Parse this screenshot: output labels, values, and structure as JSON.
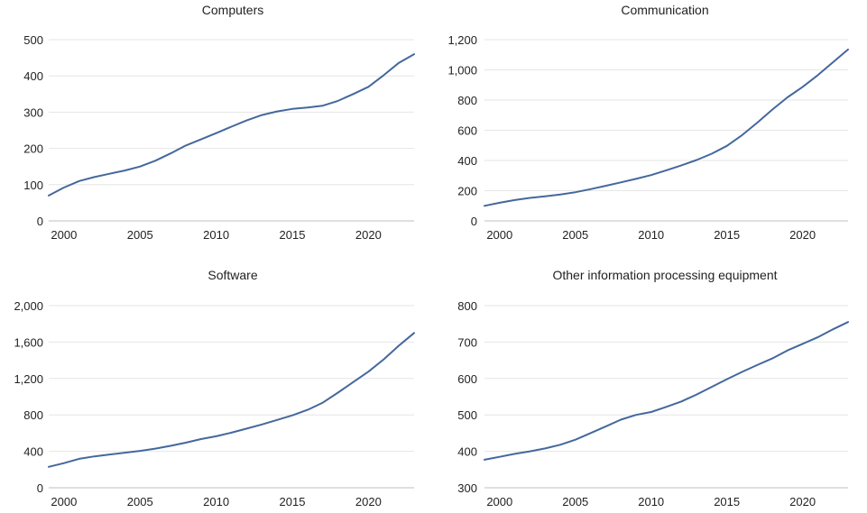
{
  "colors": {
    "line": "#44689c",
    "grid": "#e6e6e6",
    "text": "#222222"
  },
  "x_ticks": [
    2000,
    2005,
    2010,
    2015,
    2020
  ],
  "chart_data": [
    {
      "type": "line",
      "title": "Computers",
      "xlabel": "",
      "ylabel": "",
      "xlim": [
        1999,
        2023
      ],
      "ylim": [
        0,
        500
      ],
      "y_ticks": [
        0,
        100,
        200,
        300,
        400,
        500
      ],
      "y_tick_labels": [
        "0",
        "100",
        "200",
        "300",
        "400",
        "500"
      ],
      "x": [
        1999,
        2000,
        2001,
        2002,
        2003,
        2004,
        2005,
        2006,
        2007,
        2008,
        2009,
        2010,
        2011,
        2012,
        2013,
        2014,
        2015,
        2016,
        2017,
        2018,
        2019,
        2020,
        2021,
        2022,
        2023
      ],
      "values": [
        70,
        92,
        110,
        121,
        130,
        139,
        150,
        166,
        186,
        208,
        225,
        242,
        260,
        277,
        292,
        302,
        309,
        313,
        318,
        331,
        350,
        370,
        402,
        436,
        460
      ]
    },
    {
      "type": "line",
      "title": "Communication",
      "xlabel": "",
      "ylabel": "",
      "xlim": [
        1999,
        2023
      ],
      "ylim": [
        0,
        1200
      ],
      "y_ticks": [
        0,
        200,
        400,
        600,
        800,
        1000,
        1200
      ],
      "y_tick_labels": [
        "0",
        "200",
        "400",
        "600",
        "800",
        "1,000",
        "1,200"
      ],
      "x": [
        1999,
        2000,
        2001,
        2002,
        2003,
        2004,
        2005,
        2006,
        2007,
        2008,
        2009,
        2010,
        2011,
        2012,
        2013,
        2014,
        2015,
        2016,
        2017,
        2018,
        2019,
        2020,
        2021,
        2022,
        2023
      ],
      "values": [
        100,
        120,
        138,
        152,
        163,
        175,
        190,
        210,
        232,
        255,
        278,
        303,
        335,
        368,
        403,
        445,
        497,
        568,
        650,
        737,
        818,
        887,
        965,
        1050,
        1135
      ]
    },
    {
      "type": "line",
      "title": "Software",
      "xlabel": "",
      "ylabel": "",
      "xlim": [
        1999,
        2023
      ],
      "ylim": [
        0,
        2000
      ],
      "y_ticks": [
        0,
        400,
        800,
        1200,
        1600,
        2000
      ],
      "y_tick_labels": [
        "0",
        "400",
        "800",
        "1,200",
        "1,600",
        "2,000"
      ],
      "x": [
        1999,
        2000,
        2001,
        2002,
        2003,
        2004,
        2005,
        2006,
        2007,
        2008,
        2009,
        2010,
        2011,
        2012,
        2013,
        2014,
        2015,
        2016,
        2017,
        2018,
        2019,
        2020,
        2021,
        2022,
        2023
      ],
      "values": [
        230,
        270,
        318,
        345,
        365,
        385,
        405,
        430,
        460,
        495,
        535,
        565,
        605,
        650,
        695,
        745,
        795,
        855,
        935,
        1045,
        1160,
        1275,
        1410,
        1560,
        1700
      ]
    },
    {
      "type": "line",
      "title": "Other information processing equipment",
      "xlabel": "",
      "ylabel": "",
      "xlim": [
        1999,
        2023
      ],
      "ylim": [
        300,
        800
      ],
      "y_ticks": [
        300,
        400,
        500,
        600,
        700,
        800
      ],
      "y_tick_labels": [
        "300",
        "400",
        "500",
        "600",
        "700",
        "800"
      ],
      "x": [
        1999,
        2000,
        2001,
        2002,
        2003,
        2004,
        2005,
        2006,
        2007,
        2008,
        2009,
        2010,
        2011,
        2012,
        2013,
        2014,
        2015,
        2016,
        2017,
        2018,
        2019,
        2020,
        2021,
        2022,
        2023
      ],
      "values": [
        377,
        385,
        393,
        400,
        408,
        418,
        432,
        450,
        468,
        487,
        500,
        508,
        522,
        537,
        556,
        577,
        598,
        618,
        637,
        655,
        677,
        695,
        713,
        735,
        755
      ]
    }
  ]
}
